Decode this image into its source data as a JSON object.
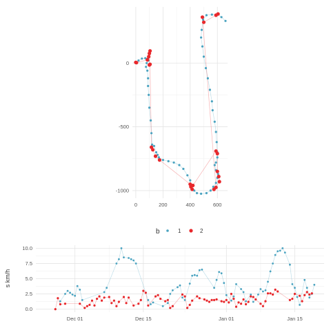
{
  "legend": {
    "title": "b",
    "items": [
      {
        "label": "1",
        "color": "#4aa3c0"
      },
      {
        "label": "2",
        "color": "#e8282c"
      }
    ]
  },
  "chart_data": [
    {
      "type": "scatter",
      "title": "",
      "xlabel": "",
      "ylabel": "",
      "xlim": [
        -25,
        675
      ],
      "ylim": [
        -1060,
        440
      ],
      "x_ticks": [
        {
          "v": 0,
          "label": "0"
        },
        {
          "v": 200,
          "label": "200"
        },
        {
          "v": 400,
          "label": "400"
        },
        {
          "v": 600,
          "label": "600"
        }
      ],
      "y_ticks": [
        {
          "v": 0,
          "label": "0"
        },
        {
          "v": -500,
          "label": "-500"
        },
        {
          "v": -1000,
          "label": "-1000"
        }
      ],
      "grid": true,
      "series": [
        {
          "name": "1",
          "color": "#4aa3c0",
          "points": [
            [
              0,
              0
            ],
            [
              20,
              20
            ],
            [
              45,
              35
            ],
            [
              70,
              38
            ],
            [
              90,
              38
            ],
            [
              93,
              20
            ],
            [
              80,
              0
            ],
            [
              75,
              -30
            ],
            [
              85,
              -60
            ],
            [
              90,
              -120
            ],
            [
              90,
              -180
            ],
            [
              95,
              -250
            ],
            [
              100,
              -350
            ],
            [
              110,
              -450
            ],
            [
              115,
              -550
            ],
            [
              120,
              -640
            ],
            [
              135,
              -650
            ],
            [
              150,
              -700
            ],
            [
              160,
              -720
            ],
            [
              170,
              -740
            ],
            [
              200,
              -760
            ],
            [
              240,
              -770
            ],
            [
              280,
              -780
            ],
            [
              320,
              -800
            ],
            [
              350,
              -830
            ],
            [
              380,
              -880
            ],
            [
              400,
              -920
            ],
            [
              410,
              -960
            ],
            [
              430,
              -1000
            ],
            [
              450,
              -1020
            ],
            [
              480,
              -1025
            ],
            [
              520,
              -1020
            ],
            [
              550,
              -1000
            ],
            [
              570,
              -970
            ],
            [
              590,
              -940
            ],
            [
              600,
              -900
            ],
            [
              605,
              -870
            ],
            [
              590,
              -840
            ],
            [
              580,
              -800
            ],
            [
              590,
              -780
            ],
            [
              600,
              -740
            ],
            [
              600,
              -700
            ],
            [
              595,
              -620
            ],
            [
              590,
              -540
            ],
            [
              580,
              -460
            ],
            [
              565,
              -370
            ],
            [
              560,
              -300
            ],
            [
              545,
              -210
            ],
            [
              530,
              -120
            ],
            [
              515,
              -40
            ],
            [
              500,
              50
            ],
            [
              490,
              130
            ],
            [
              480,
              200
            ],
            [
              485,
              260
            ],
            [
              495,
              340
            ],
            [
              520,
              375
            ],
            [
              560,
              380
            ],
            [
              600,
              385
            ],
            [
              630,
              360
            ],
            [
              660,
              330
            ]
          ]
        },
        {
          "name": "2",
          "color": "#e8282c",
          "points": [
            [
              0,
              5
            ],
            [
              5,
              3
            ],
            [
              85,
              25
            ],
            [
              95,
              50
            ],
            [
              100,
              75
            ],
            [
              105,
              95
            ],
            [
              100,
              -15
            ],
            [
              105,
              -10
            ],
            [
              115,
              -660
            ],
            [
              125,
              -680
            ],
            [
              145,
              -730
            ],
            [
              175,
              -760
            ],
            [
              400,
              -950
            ],
            [
              405,
              -970
            ],
            [
              415,
              -990
            ],
            [
              420,
              -960
            ],
            [
              590,
              -690
            ],
            [
              600,
              -710
            ],
            [
              600,
              -850
            ],
            [
              610,
              -890
            ],
            [
              615,
              -930
            ],
            [
              575,
              -990
            ],
            [
              590,
              -975
            ],
            [
              490,
              360
            ],
            [
              500,
              320
            ],
            [
              590,
              375
            ],
            [
              605,
              385
            ]
          ]
        }
      ]
    },
    {
      "type": "line",
      "title": "",
      "xlabel": "",
      "ylabel": "s km/h",
      "xlim": [
        -8,
        51
      ],
      "ylim": [
        -0.5,
        10.5
      ],
      "x_ticks": [
        {
          "v": 0,
          "label": "Dec 01"
        },
        {
          "v": 14,
          "label": "Dec 15"
        },
        {
          "v": 31,
          "label": "Jan 01"
        },
        {
          "v": 45,
          "label": "Jan 15"
        }
      ],
      "y_ticks": [
        {
          "v": 0,
          "label": "0.0"
        },
        {
          "v": 2.5,
          "label": "2.5"
        },
        {
          "v": 5,
          "label": "5.0"
        },
        {
          "v": 7.5,
          "label": "7.5"
        },
        {
          "v": 10,
          "label": "10.0"
        }
      ],
      "grid": true,
      "series": [
        {
          "name": "1",
          "color": "#4aa3c0",
          "points": [
            [
              -3,
              1.3
            ],
            [
              -2,
              2.5
            ],
            [
              -1.5,
              3
            ],
            [
              -1,
              2.7
            ],
            [
              -0.5,
              2.4
            ],
            [
              0,
              2.2
            ],
            [
              0.5,
              3.8
            ],
            [
              1,
              3.2
            ],
            [
              1.5,
              1.5
            ],
            [
              6,
              2.8
            ],
            [
              6.5,
              3.5
            ],
            [
              8.5,
              7.5
            ],
            [
              9,
              8.2
            ],
            [
              9.5,
              10
            ],
            [
              10,
              8.5
            ],
            [
              11,
              8.4
            ],
            [
              11.5,
              8.2
            ],
            [
              12,
              8
            ],
            [
              12.5,
              7.5
            ],
            [
              15,
              1.5
            ],
            [
              15.5,
              0.8
            ],
            [
              16,
              1.1
            ],
            [
              18,
              0.5
            ],
            [
              19,
              1
            ],
            [
              19.5,
              2.5
            ],
            [
              20,
              3.1
            ],
            [
              21,
              3.6
            ],
            [
              21.5,
              3.9
            ],
            [
              22,
              1.9
            ],
            [
              22.5,
              1.5
            ],
            [
              23.5,
              4.2
            ],
            [
              24,
              5.5
            ],
            [
              24.5,
              5.6
            ],
            [
              25,
              5.5
            ],
            [
              25.5,
              6.4
            ],
            [
              26,
              6.5
            ],
            [
              28.5,
              3.5
            ],
            [
              29,
              4.8
            ],
            [
              29.5,
              6.1
            ],
            [
              30,
              5.9
            ],
            [
              30.5,
              4.3
            ],
            [
              31,
              2.3
            ],
            [
              32,
              1.4
            ],
            [
              32.5,
              2.1
            ],
            [
              33,
              4.1
            ],
            [
              34,
              3.3
            ],
            [
              34.5,
              2.8
            ],
            [
              35,
              1.3
            ],
            [
              36,
              2.4
            ],
            [
              36.5,
              1.2
            ],
            [
              37,
              1.6
            ],
            [
              37.5,
              2.4
            ],
            [
              38,
              3.3
            ],
            [
              38.5,
              2.9
            ],
            [
              39,
              3.1
            ],
            [
              39.5,
              4.5
            ],
            [
              40,
              6.2
            ],
            [
              40.5,
              7.5
            ],
            [
              41,
              8.9
            ],
            [
              41.5,
              9.5
            ],
            [
              42,
              9.6
            ],
            [
              42.5,
              10
            ],
            [
              43,
              9.3
            ],
            [
              44,
              7.3
            ],
            [
              44.5,
              4.1
            ],
            [
              45,
              3.5
            ],
            [
              45.5,
              2
            ],
            [
              46,
              0.7
            ],
            [
              47,
              4.8
            ],
            [
              47.5,
              3.5
            ],
            [
              48,
              1.9
            ],
            [
              48.5,
              2.5
            ],
            [
              49,
              4
            ]
          ]
        },
        {
          "name": "2",
          "color": "#e8282c",
          "points": [
            [
              -4,
              0
            ],
            [
              -3.5,
              1.8
            ],
            [
              -3,
              0.8
            ],
            [
              -2,
              0.9
            ],
            [
              1,
              0.9
            ],
            [
              2,
              0.2
            ],
            [
              2.5,
              0.5
            ],
            [
              3,
              0.7
            ],
            [
              3.5,
              1.4
            ],
            [
              4,
              0.6
            ],
            [
              4.5,
              1.7
            ],
            [
              5,
              2.1
            ],
            [
              5.5,
              1.4
            ],
            [
              6,
              1.9
            ],
            [
              7,
              2
            ],
            [
              7.5,
              1
            ],
            [
              8,
              1.4
            ],
            [
              8.5,
              0.5
            ],
            [
              9,
              1.2
            ],
            [
              10,
              2
            ],
            [
              10.5,
              1
            ],
            [
              11,
              1.9
            ],
            [
              12,
              0.6
            ],
            [
              13,
              0.9
            ],
            [
              13.5,
              1.5
            ],
            [
              14,
              3
            ],
            [
              14.5,
              2.7
            ],
            [
              15,
              0.6
            ],
            [
              16.5,
              2.1
            ],
            [
              17,
              2.3
            ],
            [
              17.5,
              1.7
            ],
            [
              18.5,
              1.3
            ],
            [
              19,
              1.5
            ],
            [
              19.5,
              0.2
            ],
            [
              20,
              0.5
            ],
            [
              22,
              2.4
            ],
            [
              22.5,
              2.1
            ],
            [
              23,
              0.2
            ],
            [
              23.5,
              0.7
            ],
            [
              24,
              1.4
            ],
            [
              25,
              2.1
            ],
            [
              25.5,
              1.8
            ],
            [
              26.5,
              1.6
            ],
            [
              27,
              1.4
            ],
            [
              27.5,
              1.2
            ],
            [
              28,
              1.5
            ],
            [
              28.5,
              1.5
            ],
            [
              29,
              1.6
            ],
            [
              30,
              1.3
            ],
            [
              30.5,
              1.2
            ],
            [
              31,
              1.5
            ],
            [
              31.5,
              1.1
            ],
            [
              32,
              2.5
            ],
            [
              32.5,
              1.7
            ],
            [
              33,
              0.4
            ],
            [
              33.5,
              1.1
            ],
            [
              34,
              0.9
            ],
            [
              34.5,
              1.6
            ],
            [
              35,
              0.8
            ],
            [
              35.5,
              1.2
            ],
            [
              36,
              2.1
            ],
            [
              36.5,
              2
            ],
            [
              37,
              1.6
            ],
            [
              38,
              0.9
            ],
            [
              38.5,
              0.5
            ],
            [
              39,
              1.3
            ],
            [
              39.5,
              2.6
            ],
            [
              40,
              2.6
            ],
            [
              40.5,
              2.4
            ],
            [
              41,
              3.2
            ],
            [
              41.5,
              2.9
            ],
            [
              44,
              1.5
            ],
            [
              44.5,
              1.7
            ],
            [
              45,
              2.5
            ],
            [
              46,
              2.2
            ],
            [
              46.5,
              1.3
            ],
            [
              47,
              2.3
            ],
            [
              47.5,
              2.8
            ],
            [
              48,
              2.4
            ],
            [
              48.5,
              2.6
            ]
          ]
        }
      ]
    }
  ]
}
